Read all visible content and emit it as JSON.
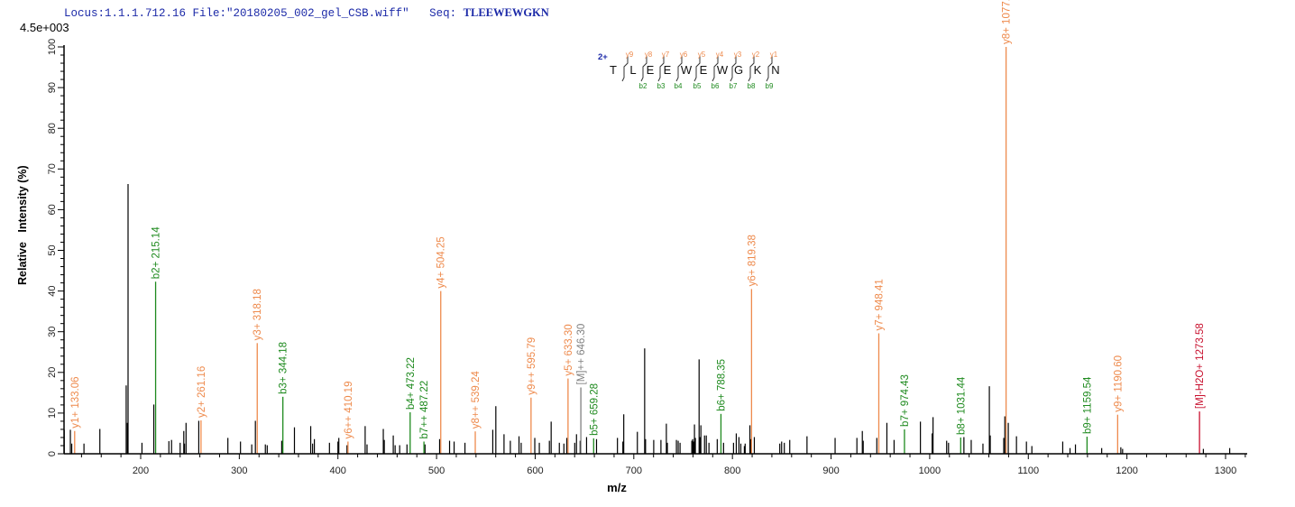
{
  "header": {
    "locus": "Locus:1.1.1.712.16",
    "file": "File:\"20180205_002_gel_CSB.wiff\"",
    "seq_label": "Seq:",
    "seq": "TLEEWEWGKN"
  },
  "sequence_diagram": {
    "charge": "2+",
    "residues": [
      "T",
      "L",
      "E",
      "E",
      "W",
      "E",
      "W",
      "G",
      "K",
      "N"
    ],
    "y_ions": [
      "y9",
      "y8",
      "y7",
      "y6",
      "y5",
      "y4",
      "y3",
      "y2",
      "y1"
    ],
    "b_ions": [
      "b2",
      "b3",
      "b4",
      "b5",
      "b6",
      "b7",
      "b8",
      "b9"
    ]
  },
  "chart_data": {
    "type": "bar",
    "scale_label": "4.5e+003",
    "xlabel": "m/z",
    "ylabel": "Relative   Intensity (%)",
    "xlim": [
      122,
      1322
    ],
    "ylim": [
      0,
      100
    ],
    "xticks": [
      200,
      300,
      400,
      500,
      600,
      700,
      800,
      900,
      1000,
      1100,
      1200,
      1300
    ],
    "yticks": [
      0,
      10,
      20,
      30,
      40,
      50,
      60,
      70,
      80,
      90,
      100
    ],
    "colors": {
      "y": "#ee8a4c",
      "b": "#1e8a1e",
      "M": "#808080",
      "MH2O": "#c8102e",
      "other": "#000000"
    },
    "annotated_peaks": [
      {
        "mz": 133.06,
        "intensity": 5.6,
        "ion": "y",
        "label": "y1+ 133.06"
      },
      {
        "mz": 215.14,
        "intensity": 42.3,
        "ion": "b",
        "label": "b2+ 215.14"
      },
      {
        "mz": 261.16,
        "intensity": 8.2,
        "ion": "y",
        "label": "y2+ 261.16"
      },
      {
        "mz": 318.18,
        "intensity": 27.2,
        "ion": "y",
        "label": "y3+ 318.18"
      },
      {
        "mz": 344.18,
        "intensity": 14.0,
        "ion": "b",
        "label": "b3+ 344.18"
      },
      {
        "mz": 410.19,
        "intensity": 3.0,
        "ion": "y",
        "label": "y6++ 410.19"
      },
      {
        "mz": 473.22,
        "intensity": 10.2,
        "ion": "b",
        "label": "b4+ 473.22"
      },
      {
        "mz": 487.22,
        "intensity": 3.0,
        "ion": "b",
        "label": "b7++ 487.22"
      },
      {
        "mz": 504.25,
        "intensity": 40.0,
        "ion": "y",
        "label": "y4+ 504.25"
      },
      {
        "mz": 539.24,
        "intensity": 5.5,
        "ion": "y",
        "label": "y8++ 539.24"
      },
      {
        "mz": 595.79,
        "intensity": 13.8,
        "ion": "y",
        "label": "y9++ 595.79"
      },
      {
        "mz": 633.3,
        "intensity": 18.5,
        "ion": "y",
        "label": "y5+ 633.30"
      },
      {
        "mz": 646.3,
        "intensity": 16.3,
        "ion": "M",
        "label": "[M]++ 646.30"
      },
      {
        "mz": 659.28,
        "intensity": 3.8,
        "ion": "b",
        "label": "b5+ 659.28"
      },
      {
        "mz": 788.35,
        "intensity": 9.8,
        "ion": "b",
        "label": "b6+ 788.35"
      },
      {
        "mz": 819.38,
        "intensity": 40.5,
        "ion": "y",
        "label": "y6+ 819.38"
      },
      {
        "mz": 948.41,
        "intensity": 29.6,
        "ion": "y",
        "label": "y7+ 948.41"
      },
      {
        "mz": 974.43,
        "intensity": 6.0,
        "ion": "b",
        "label": "b7+ 974.43"
      },
      {
        "mz": 1031.44,
        "intensity": 4.0,
        "ion": "b",
        "label": "b8+ 1031.44"
      },
      {
        "mz": 1077.46,
        "intensity": 100,
        "ion": "y",
        "label": "y8+ 1077.46"
      },
      {
        "mz": 1159.54,
        "intensity": 4.2,
        "ion": "b",
        "label": "b9+ 1159.54"
      },
      {
        "mz": 1190.6,
        "intensity": 9.6,
        "ion": "y",
        "label": "y9+ 1190.60"
      },
      {
        "mz": 1273.58,
        "intensity": 10.4,
        "ion": "MH2O",
        "label": "[M]-H2O+ 1273.58"
      }
    ],
    "other_peaks": [
      [
        122.5,
        5.9
      ],
      [
        128.7,
        5.9
      ],
      [
        130.1,
        2.5
      ],
      [
        142.5,
        2.5
      ],
      [
        158.6,
        6.1
      ],
      [
        185.3,
        16.8
      ],
      [
        186.5,
        7.6
      ],
      [
        187.2,
        66.3
      ],
      [
        201.3,
        2.7
      ],
      [
        213.3,
        12.1
      ],
      [
        228.6,
        3.1
      ],
      [
        231.3,
        3.4
      ],
      [
        240.0,
        2.7
      ],
      [
        243.7,
        5.6
      ],
      [
        244.4,
        2.5
      ],
      [
        246.0,
        7.6
      ],
      [
        258.9,
        8.1
      ],
      [
        288.4,
        3.9
      ],
      [
        301.2,
        3.0
      ],
      [
        312.6,
        2.3
      ],
      [
        316.3,
        8.1
      ],
      [
        326.4,
        2.3
      ],
      [
        328.3,
        2.1
      ],
      [
        343.0,
        3.2
      ],
      [
        355.9,
        6.5
      ],
      [
        372.4,
        6.8
      ],
      [
        374.3,
        2.5
      ],
      [
        376.1,
        3.6
      ],
      [
        391.4,
        2.7
      ],
      [
        400.0,
        3.0
      ],
      [
        400.9,
        3.9
      ],
      [
        409.2,
        2.1
      ],
      [
        427.6,
        6.8
      ],
      [
        429.5,
        2.3
      ],
      [
        446.0,
        6.1
      ],
      [
        447.0,
        3.4
      ],
      [
        456.1,
        4.5
      ],
      [
        458.0,
        2.1
      ],
      [
        462.6,
        2.1
      ],
      [
        470.0,
        2.3
      ],
      [
        488.3,
        2.3
      ],
      [
        503.1,
        3.6
      ],
      [
        513.2,
        3.2
      ],
      [
        517.8,
        3.0
      ],
      [
        528.8,
        2.7
      ],
      [
        557.0,
        5.9
      ],
      [
        560.1,
        11.7
      ],
      [
        568.4,
        4.8
      ],
      [
        574.8,
        3.2
      ],
      [
        583.6,
        4.3
      ],
      [
        585.8,
        2.7
      ],
      [
        599.6,
        3.9
      ],
      [
        604.2,
        2.7
      ],
      [
        614.4,
        3.2
      ],
      [
        616.2,
        7.9
      ],
      [
        624.5,
        2.7
      ],
      [
        629.1,
        2.5
      ],
      [
        632.1,
        3.9
      ],
      [
        640.1,
        2.7
      ],
      [
        641.9,
        4.8
      ],
      [
        645.6,
        3.2
      ],
      [
        652.1,
        4.1
      ],
      [
        662.2,
        3.6
      ],
      [
        683.4,
        3.9
      ],
      [
        688.9,
        3.0
      ],
      [
        689.8,
        9.7
      ],
      [
        703.6,
        5.4
      ],
      [
        711.0,
        25.9
      ],
      [
        711.9,
        3.6
      ],
      [
        720.2,
        3.4
      ],
      [
        727.5,
        3.4
      ],
      [
        733.0,
        7.4
      ],
      [
        734.0,
        2.7
      ],
      [
        743.2,
        3.4
      ],
      [
        745.0,
        3.2
      ],
      [
        746.9,
        2.7
      ],
      [
        758.8,
        3.2
      ],
      [
        759.7,
        3.6
      ],
      [
        760.6,
        3.0
      ],
      [
        761.5,
        7.2
      ],
      [
        762.4,
        3.9
      ],
      [
        766.2,
        23.2
      ],
      [
        767.1,
        4.1
      ],
      [
        768.0,
        7.0
      ],
      [
        771.7,
        4.5
      ],
      [
        773.5,
        4.5
      ],
      [
        776.2,
        2.7
      ],
      [
        784.6,
        3.6
      ],
      [
        791.0,
        2.7
      ],
      [
        801.1,
        2.7
      ],
      [
        803.9,
        5.0
      ],
      [
        806.6,
        4.1
      ],
      [
        808.5,
        2.5
      ],
      [
        812.1,
        1.9
      ],
      [
        812.9,
        2.5
      ],
      [
        817.7,
        7.0
      ],
      [
        818.6,
        3.6
      ],
      [
        822.2,
        4.1
      ],
      [
        848.0,
        2.5
      ],
      [
        849.9,
        3.0
      ],
      [
        852.6,
        2.7
      ],
      [
        858.1,
        3.4
      ],
      [
        875.6,
        4.3
      ],
      [
        904.1,
        3.9
      ],
      [
        926.2,
        3.9
      ],
      [
        931.7,
        5.6
      ],
      [
        932.6,
        3.2
      ],
      [
        946.4,
        3.9
      ],
      [
        956.6,
        7.6
      ],
      [
        963.9,
        3.4
      ],
      [
        990.6,
        7.9
      ],
      [
        1002.5,
        5.0
      ],
      [
        1003.4,
        9.0
      ],
      [
        1017.2,
        3.2
      ],
      [
        1019.1,
        2.7
      ],
      [
        1034.7,
        4.1
      ],
      [
        1042.1,
        3.4
      ],
      [
        1054.0,
        2.5
      ],
      [
        1060.5,
        16.6
      ],
      [
        1061.4,
        4.5
      ],
      [
        1075.1,
        3.9
      ],
      [
        1076.2,
        9.2
      ],
      [
        1079.7,
        7.6
      ],
      [
        1088.0,
        4.3
      ],
      [
        1098.1,
        3.0
      ],
      [
        1103.6,
        1.9
      ],
      [
        1134.9,
        3.0
      ],
      [
        1142.3,
        1.4
      ],
      [
        1147.8,
        2.3
      ],
      [
        1174.4,
        1.4
      ],
      [
        1193.8,
        1.6
      ],
      [
        1195.6,
        1.2
      ],
      [
        1277.5,
        1.2
      ],
      [
        1304.2,
        1.4
      ]
    ]
  }
}
